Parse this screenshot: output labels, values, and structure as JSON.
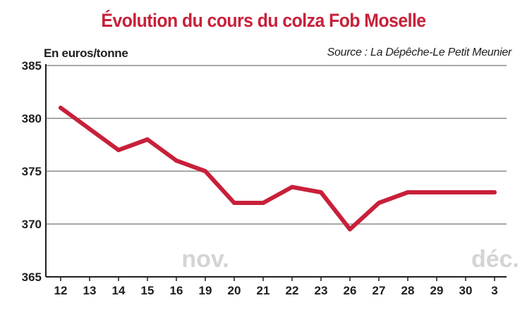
{
  "colors": {
    "title": "#c8203a",
    "line": "#c8203a",
    "grid": "#8c8c8c",
    "axis": "#1e1e1e",
    "month_labels": "#d4d4d4"
  },
  "chart_data": {
    "type": "line",
    "title": "Évolution du cours du colza Fob Moselle",
    "ylabel": "En euros/tonne",
    "source": "Source : La Dépêche-Le Petit Meunier",
    "categories": [
      "12",
      "13",
      "14",
      "15",
      "16",
      "19",
      "20",
      "21",
      "22",
      "23",
      "26",
      "27",
      "28",
      "29",
      "30",
      "3"
    ],
    "series": [
      {
        "values": [
          381,
          379,
          377,
          378,
          376,
          375,
          372,
          372,
          373.5,
          373,
          369.5,
          372,
          373,
          373,
          373,
          373
        ]
      }
    ],
    "ylim": [
      365,
      385
    ],
    "yticks": [
      365,
      370,
      375,
      380,
      385
    ],
    "grid": true,
    "annotations": [
      {
        "text": "nov.",
        "category": "19"
      },
      {
        "text": "déc.",
        "category": "3"
      }
    ]
  }
}
